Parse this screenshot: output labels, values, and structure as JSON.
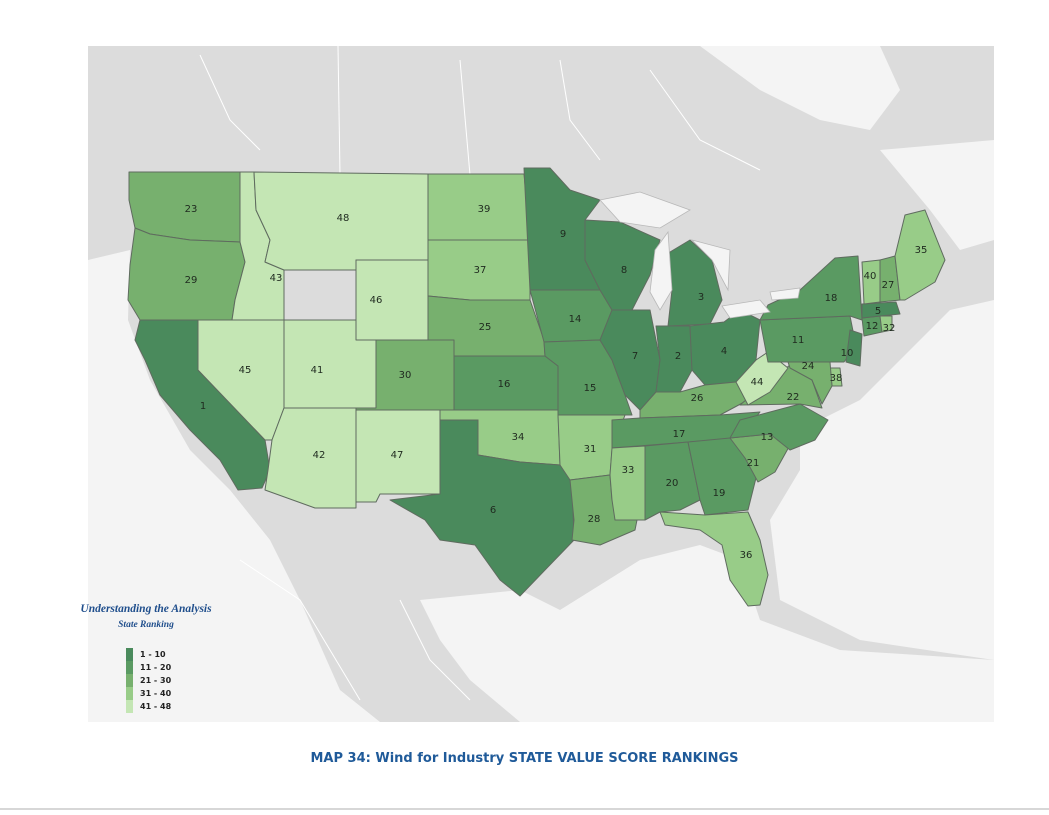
{
  "caption": "MAP 34: Wind for Industry STATE VALUE SCORE RANKINGS",
  "legend": {
    "heading": "Understanding the Analysis",
    "subheading": "State Ranking",
    "classes": [
      {
        "label": "1 - 10",
        "color": "#4a8a5c"
      },
      {
        "label": "11 - 20",
        "color": "#5a9a62"
      },
      {
        "label": "21 - 30",
        "color": "#77b06e"
      },
      {
        "label": "31 - 40",
        "color": "#98cc88"
      },
      {
        "label": "41 - 48",
        "color": "#c4e6b4"
      }
    ]
  },
  "colors": {
    "land": "#dcdcdc",
    "water": "#f4f4f4",
    "borders": "#ffffff",
    "state_outline": "#5f6b5f"
  },
  "states": [
    {
      "abbr": "WA",
      "rank": "23"
    },
    {
      "abbr": "OR",
      "rank": "29"
    },
    {
      "abbr": "CA",
      "rank": "1"
    },
    {
      "abbr": "ID",
      "rank": "43"
    },
    {
      "abbr": "NV",
      "rank": "45"
    },
    {
      "abbr": "MT",
      "rank": "48"
    },
    {
      "abbr": "WY",
      "rank": "46"
    },
    {
      "abbr": "UT",
      "rank": "41"
    },
    {
      "abbr": "AZ",
      "rank": "42"
    },
    {
      "abbr": "CO",
      "rank": "30"
    },
    {
      "abbr": "NM",
      "rank": "47"
    },
    {
      "abbr": "ND",
      "rank": "39"
    },
    {
      "abbr": "SD",
      "rank": "37"
    },
    {
      "abbr": "NE",
      "rank": "25"
    },
    {
      "abbr": "KS",
      "rank": "16"
    },
    {
      "abbr": "OK",
      "rank": "34"
    },
    {
      "abbr": "TX",
      "rank": "6"
    },
    {
      "abbr": "MN",
      "rank": "9"
    },
    {
      "abbr": "IA",
      "rank": "14"
    },
    {
      "abbr": "MO",
      "rank": "15"
    },
    {
      "abbr": "AR",
      "rank": "31"
    },
    {
      "abbr": "LA",
      "rank": "28"
    },
    {
      "abbr": "WI",
      "rank": "8"
    },
    {
      "abbr": "IL",
      "rank": "7"
    },
    {
      "abbr": "MI",
      "rank": "3"
    },
    {
      "abbr": "IN",
      "rank": "2"
    },
    {
      "abbr": "OH",
      "rank": "4"
    },
    {
      "abbr": "KY",
      "rank": "26"
    },
    {
      "abbr": "TN",
      "rank": "17"
    },
    {
      "abbr": "MS",
      "rank": "33"
    },
    {
      "abbr": "AL",
      "rank": "20"
    },
    {
      "abbr": "GA",
      "rank": "19"
    },
    {
      "abbr": "FL",
      "rank": "36"
    },
    {
      "abbr": "SC",
      "rank": "21"
    },
    {
      "abbr": "NC",
      "rank": "13"
    },
    {
      "abbr": "VA",
      "rank": "22"
    },
    {
      "abbr": "WV",
      "rank": "44"
    },
    {
      "abbr": "PA",
      "rank": "11"
    },
    {
      "abbr": "NY",
      "rank": "18"
    },
    {
      "abbr": "NJ",
      "rank": "10"
    },
    {
      "abbr": "DE",
      "rank": "38"
    },
    {
      "abbr": "MD",
      "rank": "24"
    },
    {
      "abbr": "CT",
      "rank": "12"
    },
    {
      "abbr": "RI",
      "rank": "32"
    },
    {
      "abbr": "MA",
      "rank": "5"
    },
    {
      "abbr": "VT",
      "rank": "40"
    },
    {
      "abbr": "NH",
      "rank": "27"
    },
    {
      "abbr": "ME",
      "rank": "35"
    }
  ]
}
